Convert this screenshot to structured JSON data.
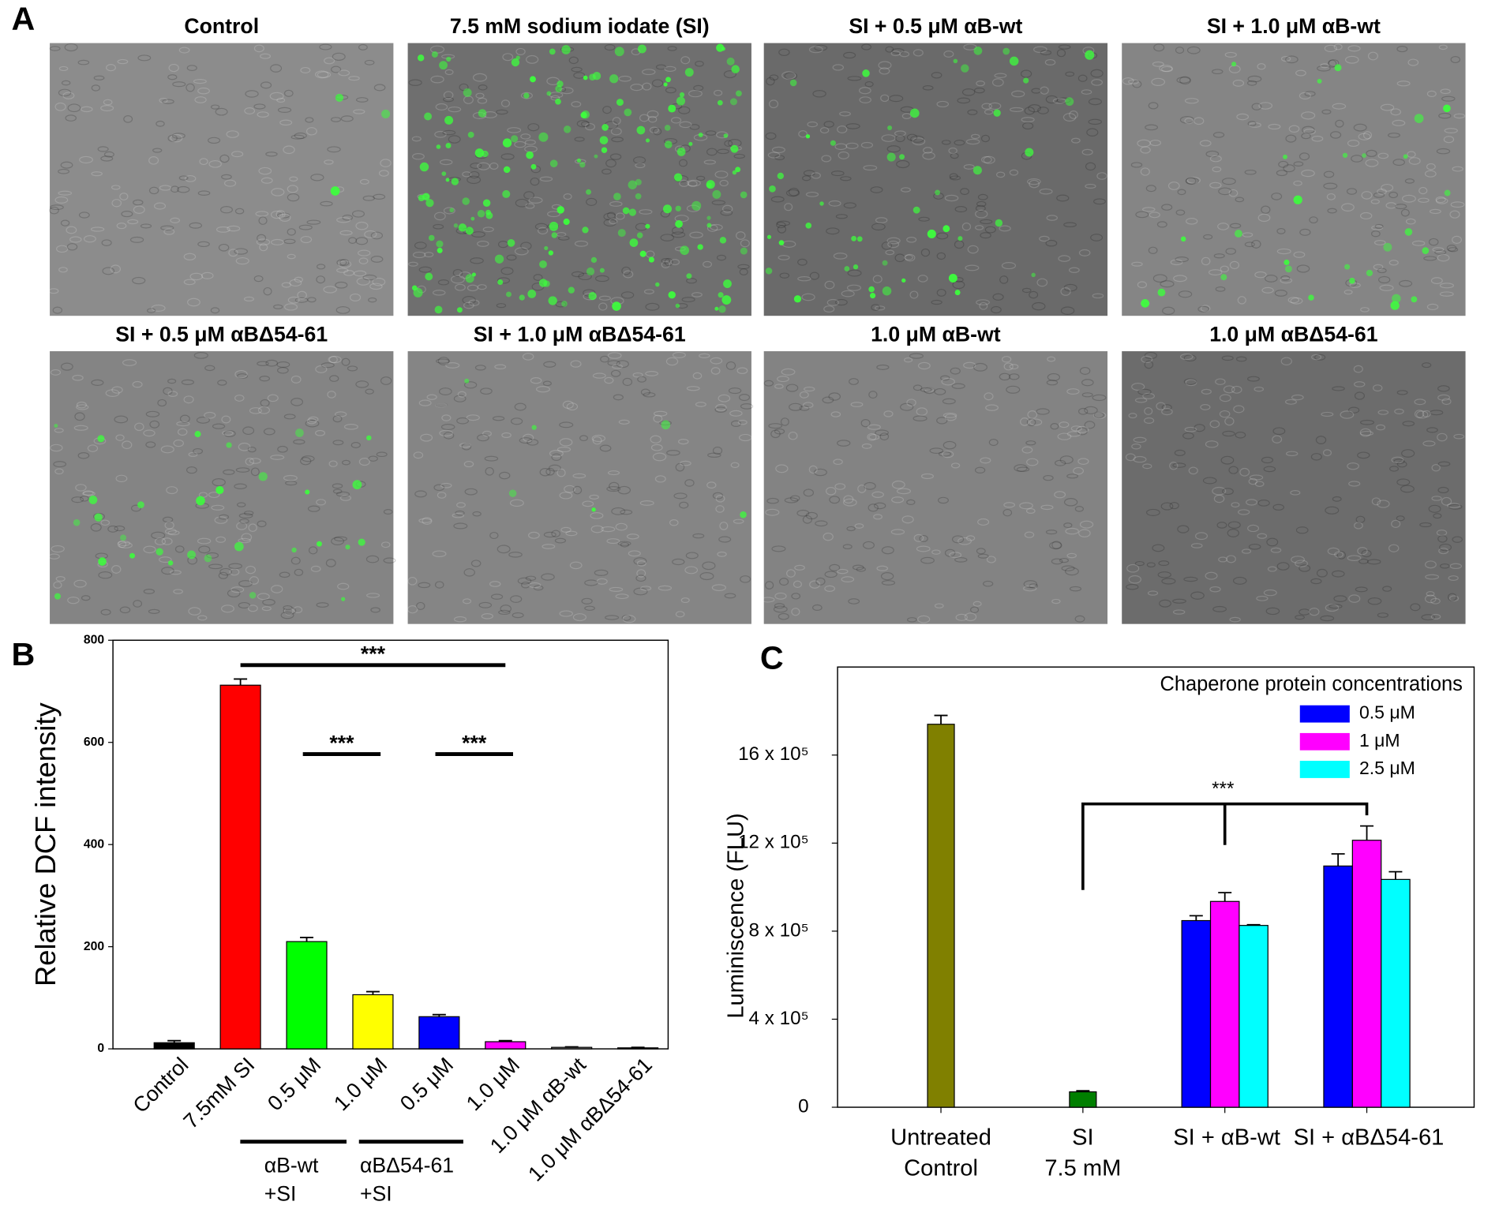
{
  "image_panels": {
    "label": "A",
    "titles": [
      "Control",
      "7.5 mM sodium iodate (SI)",
      "SI + 0.5 μM αB-wt",
      "SI + 1.0 μM αB-wt",
      "SI + 0.5 μM αBΔ54-61",
      "SI + 1.0 μM αBΔ54-61",
      "1.0 μM αB-wt",
      "1.0 μM αBΔ54-61"
    ]
  },
  "chart_data": [
    {
      "type": "bar",
      "panel_label": "B",
      "ylabel": "Relative DCF intensity",
      "categories": [
        "Control",
        "7.5mM SI",
        "0.5 μM",
        "1.0 μM",
        "0.5 μM",
        "1.0 μM",
        "1.0 μM αB-wt",
        "1.0 μM αBΔ54-61"
      ],
      "values": [
        12,
        712,
        210,
        106,
        63,
        14,
        3,
        2
      ],
      "errors": [
        4,
        12,
        8,
        6,
        4,
        2,
        1,
        1
      ],
      "colors": [
        "#000000",
        "#ff0000",
        "#00ff00",
        "#ffff00",
        "#0000ff",
        "#ff00ff",
        "#808080",
        "#808080"
      ],
      "ylim": [
        0,
        800
      ],
      "yticks": [
        0,
        200,
        400,
        600,
        800
      ],
      "groups": [
        {
          "label": [
            "αB-wt",
            "+SI"
          ]
        },
        {
          "label": [
            "αBΔ54-61",
            "+SI"
          ]
        }
      ],
      "annotations": [
        "***",
        "***",
        "***"
      ]
    },
    {
      "type": "grouped_bar",
      "panel_label": "C",
      "ylabel": "Luminiscence (FLU)",
      "legend_title": "Chaperone protein concentrations",
      "legend": "upper right",
      "categories": [
        [
          "Untreated",
          "Control"
        ],
        [
          "SI",
          "7.5 mM"
        ],
        [
          "SI + αB-wt"
        ],
        [
          "SI + αBΔ54-61"
        ]
      ],
      "single": {
        "values": [
          1740000,
          70000,
          null,
          null
        ],
        "errors": [
          40000,
          5000,
          null,
          null
        ],
        "colors": [
          "#808000",
          "#007f00",
          null,
          null
        ]
      },
      "series": [
        {
          "name": "0.5 μM",
          "color": "#0000ff",
          "values": [
            null,
            null,
            848000,
            1096000
          ],
          "errors": [
            null,
            null,
            22000,
            55000
          ]
        },
        {
          "name": "1 μM",
          "color": "#ff00ff",
          "values": [
            null,
            null,
            935000,
            1213000
          ],
          "errors": [
            null,
            null,
            40000,
            65000
          ]
        },
        {
          "name": "2.5 μM",
          "color": "#00ffff",
          "values": [
            null,
            null,
            826000,
            1035000
          ],
          "errors": [
            null,
            null,
            3000,
            35000
          ]
        }
      ],
      "ylim": [
        0,
        2000000
      ],
      "yticks": [
        0,
        {
          "value": 400000,
          "label": "4 x 10⁵"
        },
        {
          "value": 800000,
          "label": "8 x 10⁵"
        },
        {
          "value": 1200000,
          "label": "12 x 10⁵"
        },
        {
          "value": 1600000,
          "label": "16 x 10⁵"
        }
      ],
      "annotations": [
        "***"
      ]
    }
  ]
}
